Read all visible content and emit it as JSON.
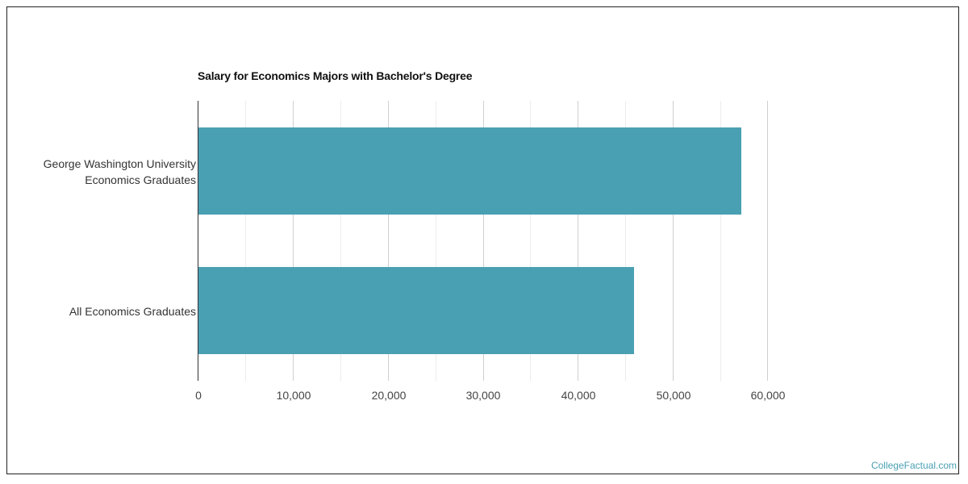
{
  "chart_data": {
    "type": "bar",
    "orientation": "horizontal",
    "title": "Salary for Economics Majors with Bachelor's Degree",
    "categories": [
      "George Washington University Economics Graduates",
      "All Economics Graduates"
    ],
    "category_lines": [
      [
        "George Washington University",
        "Economics Graduates"
      ],
      [
        "All Economics Graduates"
      ]
    ],
    "values": [
      57100,
      45800
    ],
    "xlabel": "",
    "ylabel": "",
    "xlim": [
      0,
      60000
    ],
    "ticks": [
      "0",
      "10,000",
      "20,000",
      "30,000",
      "40,000",
      "50,000",
      "60,000"
    ],
    "grid": true,
    "legend": "none",
    "bar_color": "#4aa0b3"
  },
  "credit": "CollegeFactual.com"
}
